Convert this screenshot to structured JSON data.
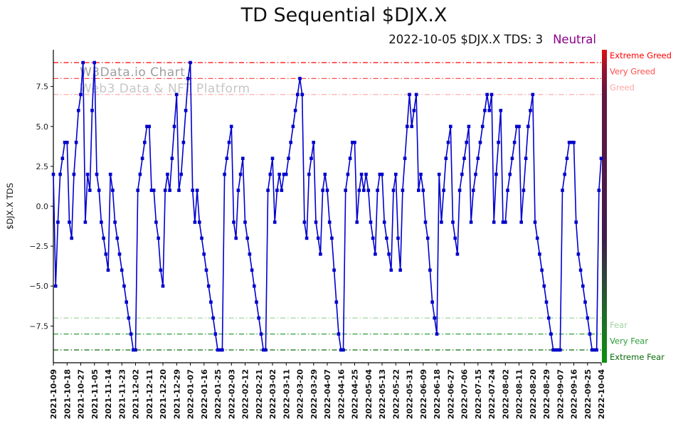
{
  "title": "TD Sequential $DJX.X",
  "subtitle": {
    "text": "2022-10-05 $DJX.X TDS: 3",
    "status": "Neutral",
    "status_color": "#8B008B"
  },
  "watermark": {
    "line1": "W3Data.io Chart",
    "line2": "Web3 Data & NFT Platform"
  },
  "chart_data": {
    "type": "line",
    "title": "TD Sequential $DJX.X",
    "xlabel": "",
    "ylabel": "$DJX.X TDS",
    "ylim": [
      -9.8,
      9.8
    ],
    "yticks": [
      -7.5,
      -5.0,
      -2.5,
      0.0,
      2.5,
      5.0,
      7.5
    ],
    "grid": false,
    "line_color": "#0000cd",
    "marker": "square",
    "legend_position": "right",
    "x_tick_labels": [
      "2021-10-09",
      "2021-10-18",
      "2021-10-27",
      "2021-11-05",
      "2021-11-14",
      "2021-11-23",
      "2021-12-02",
      "2021-12-11",
      "2021-12-20",
      "2021-12-29",
      "2022-01-07",
      "2022-01-16",
      "2022-01-25",
      "2022-02-03",
      "2022-02-12",
      "2022-02-21",
      "2022-03-02",
      "2022-03-11",
      "2022-03-20",
      "2022-03-29",
      "2022-04-07",
      "2022-04-16",
      "2022-04-25",
      "2022-05-04",
      "2022-05-13",
      "2022-05-22",
      "2022-05-31",
      "2022-06-09",
      "2022-06-18",
      "2022-06-27",
      "2022-07-06",
      "2022-07-15",
      "2022-07-24",
      "2022-08-02",
      "2022-08-11",
      "2022-08-20",
      "2022-08-29",
      "2022-09-07",
      "2022-09-16",
      "2022-09-25",
      "2022-10-04"
    ],
    "values": [
      2,
      -5,
      -1,
      2,
      3,
      4,
      4,
      -1,
      -2,
      2,
      4,
      6,
      7,
      9,
      -1,
      2,
      1,
      6,
      9,
      2,
      1,
      -1,
      -2,
      -3,
      -4,
      2,
      1,
      -1,
      -2,
      -3,
      -4,
      -5,
      -6,
      -7,
      -8,
      -9,
      -9,
      1,
      2,
      3,
      4,
      5,
      5,
      1,
      1,
      -1,
      -2,
      -4,
      -5,
      1,
      2,
      1,
      3,
      5,
      7,
      1,
      2,
      4,
      6,
      8,
      9,
      1,
      -1,
      1,
      -1,
      -2,
      -3,
      -4,
      -5,
      -6,
      -7,
      -8,
      -9,
      -9,
      -9,
      2,
      3,
      4,
      5,
      -1,
      -2,
      1,
      2,
      3,
      -1,
      -2,
      -3,
      -4,
      -5,
      -6,
      -7,
      -8,
      -9,
      -9,
      1,
      2,
      3,
      -1,
      1,
      2,
      1,
      2,
      2,
      3,
      4,
      5,
      6,
      7,
      8,
      7,
      -1,
      -2,
      2,
      3,
      4,
      -1,
      -2,
      -3,
      1,
      2,
      1,
      -1,
      -2,
      -4,
      -6,
      -8,
      -9,
      -9,
      1,
      2,
      3,
      4,
      4,
      -1,
      1,
      2,
      1,
      2,
      1,
      -1,
      -2,
      -3,
      1,
      2,
      2,
      -1,
      -2,
      -3,
      -4,
      1,
      2,
      -2,
      -4,
      1,
      3,
      5,
      7,
      5,
      6,
      7,
      1,
      2,
      1,
      -1,
      -2,
      -4,
      -6,
      -7,
      -8,
      2,
      -1,
      1,
      3,
      4,
      5,
      -1,
      -2,
      -3,
      1,
      2,
      3,
      4,
      5,
      -1,
      1,
      2,
      3,
      4,
      5,
      6,
      7,
      6,
      7,
      -1,
      2,
      4,
      6,
      -1,
      -1,
      1,
      2,
      3,
      4,
      5,
      5,
      -1,
      1,
      3,
      5,
      6,
      7,
      -1,
      -2,
      -3,
      -4,
      -5,
      -6,
      -7,
      -8,
      -9,
      -9,
      -9,
      -9,
      1,
      2,
      3,
      4,
      4,
      4,
      -1,
      -3,
      -4,
      -5,
      -6,
      -7,
      -8,
      -9,
      -9,
      -9,
      1,
      3
    ],
    "thresholds": [
      {
        "y": 9,
        "label": "Extreme Greed",
        "color": "#ff0000"
      },
      {
        "y": 8,
        "label": "Very Greed",
        "color": "#ff4d4d"
      },
      {
        "y": 7,
        "label": "Greed",
        "color": "#ffa8a8"
      },
      {
        "y": -7,
        "label": "Fear",
        "color": "#9fd59f"
      },
      {
        "y": -8,
        "label": "Very Fear",
        "color": "#2e9e3a"
      },
      {
        "y": -9,
        "label": "Extreme Fear",
        "color": "#0a6b0a"
      }
    ],
    "colorbar": [
      {
        "offset": "0%",
        "color": "#e01111"
      },
      {
        "offset": "6%",
        "color": "#99122e"
      },
      {
        "offset": "14%",
        "color": "#651640"
      },
      {
        "offset": "60%",
        "color": "#3f1b4e"
      },
      {
        "offset": "84%",
        "color": "#1f6a28"
      },
      {
        "offset": "100%",
        "color": "#0e8f12"
      }
    ]
  }
}
